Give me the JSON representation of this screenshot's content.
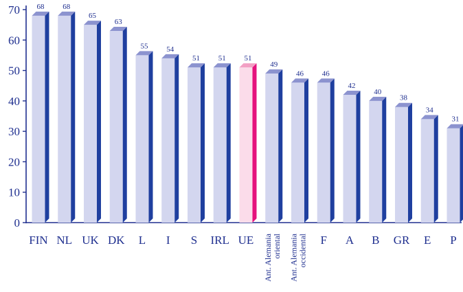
{
  "chart_data": {
    "type": "bar",
    "categories": [
      "FIN",
      "NL",
      "UK",
      "DK",
      "L",
      "I",
      "S",
      "IRL",
      "UE",
      "Ant. Alemania oriental",
      "Ant. Alemania occidental",
      "F",
      "A",
      "B",
      "GR",
      "E",
      "P"
    ],
    "category_lines": [
      [
        "FIN"
      ],
      [
        "NL"
      ],
      [
        "UK"
      ],
      [
        "DK"
      ],
      [
        "L"
      ],
      [
        "I"
      ],
      [
        "S"
      ],
      [
        "IRL"
      ],
      [
        "UE"
      ],
      [
        "Ant. Alemania",
        "oriental"
      ],
      [
        "Ant. Alemania",
        "occidental"
      ],
      [
        "F"
      ],
      [
        "A"
      ],
      [
        "B"
      ],
      [
        "GR"
      ],
      [
        "E"
      ],
      [
        "P"
      ]
    ],
    "values": [
      68,
      68,
      65,
      63,
      55,
      54,
      51,
      51,
      51,
      49,
      46,
      46,
      42,
      40,
      38,
      34,
      31
    ],
    "highlight_category": "UE",
    "yticks": [
      0,
      10,
      20,
      30,
      40,
      50,
      60,
      70
    ],
    "ylim": [
      0,
      70
    ],
    "grid": false,
    "legend": "none",
    "colors": {
      "bar_front": "#d3d6ef",
      "bar_side": "#1f3f9f",
      "bar_top": "#8c93cf",
      "highlight_front": "#fbdcea",
      "highlight_side": "#e5127d",
      "highlight_top": "#f2a0c4",
      "axis": "#1f2f8f",
      "text": "#1f2f8f"
    }
  }
}
